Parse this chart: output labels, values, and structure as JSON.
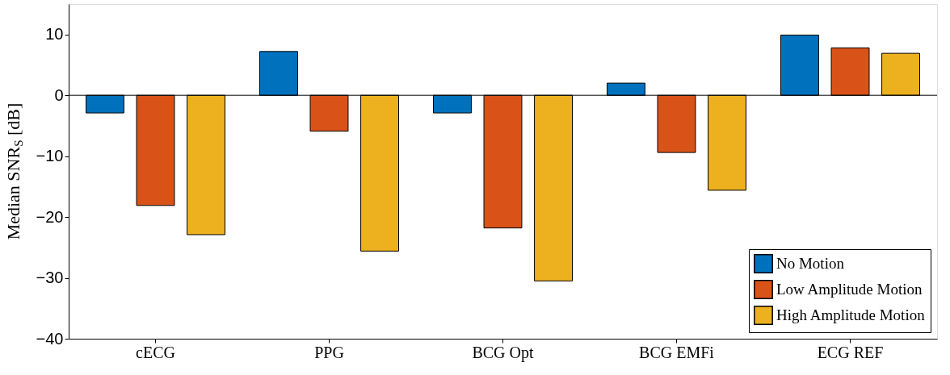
{
  "chart_data": {
    "type": "bar",
    "ylabel": "Median SNR$_{S}$ [dB]",
    "categories": [
      "cECG",
      "PPG",
      "BCG Opt",
      "BCG EMFi",
      "ECG REF"
    ],
    "series": [
      {
        "name": "No Motion",
        "color": "#0072bd",
        "values": [
          -2.9,
          7.2,
          -2.9,
          2.0,
          9.9
        ]
      },
      {
        "name": "Low Amplitude Motion",
        "color": "#d95319",
        "values": [
          -18.1,
          -5.9,
          -21.8,
          -9.4,
          7.8
        ]
      },
      {
        "name": "High Amplitude Motion",
        "color": "#edb120",
        "values": [
          -22.9,
          -25.6,
          -30.5,
          -15.6,
          6.9
        ]
      }
    ],
    "ylim": [
      -40,
      15
    ],
    "yticks": [
      -40,
      -30,
      -20,
      -10,
      0,
      10
    ],
    "legend": "bottom right"
  }
}
